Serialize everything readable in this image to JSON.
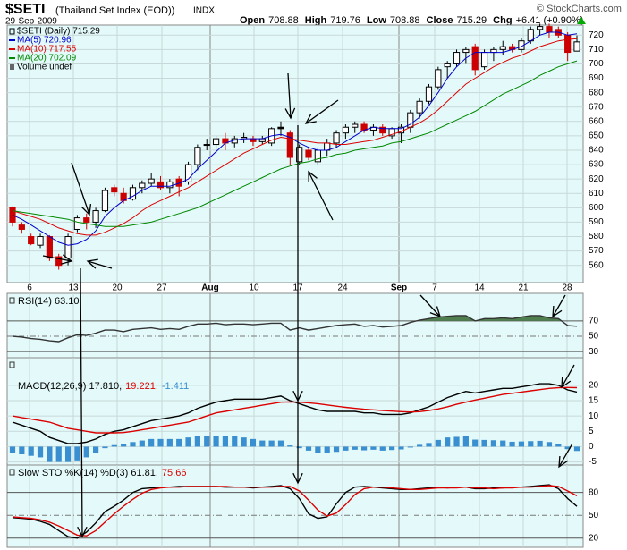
{
  "header": {
    "symbol": "$SETI",
    "name": "(Thailand Set Index (EOD))",
    "exchange": "INDX",
    "date": "29-Sep-2009",
    "credit": "© StockCharts.com",
    "quote": [
      {
        "label": "Open",
        "value": "708.88"
      },
      {
        "label": "High",
        "value": "719.76"
      },
      {
        "label": "Low",
        "value": "708.88"
      },
      {
        "label": "Close",
        "value": "715.29"
      },
      {
        "label": "Chg",
        "value": "+6.41 (+0.90%)"
      }
    ]
  },
  "chart_data": [
    {
      "type": "candlestick",
      "legend_note": "Volume undef",
      "ylim": [
        548,
        727
      ],
      "yticks": [
        560,
        570,
        580,
        590,
        600,
        610,
        620,
        630,
        640,
        650,
        660,
        670,
        680,
        690,
        700,
        710,
        720
      ],
      "grid": true,
      "x_labels": [
        "6",
        "13",
        "20",
        "27",
        "Aug",
        "10",
        "17",
        "24",
        "Sep",
        "7",
        "14",
        "21",
        "28"
      ],
      "series": [
        {
          "name": "$SETI (Daily) 715.29",
          "up_color": "#000000",
          "down_color": "#cc0000",
          "open": [
            600,
            588,
            580,
            574,
            580,
            566,
            565,
            585,
            593,
            590,
            598,
            614,
            610,
            606,
            614,
            617,
            618,
            614,
            620,
            618,
            630,
            644,
            644,
            648,
            645,
            648,
            648,
            646,
            645,
            656,
            652,
            632,
            640,
            632,
            640,
            645,
            652,
            656,
            658,
            654,
            656,
            650,
            652,
            656,
            666,
            674,
            684,
            698,
            700,
            708,
            712,
            698,
            708,
            710,
            712,
            710,
            716,
            724,
            726,
            724,
            720,
            708.88
          ],
          "high": [
            601,
            590,
            582,
            582,
            581,
            568,
            582,
            595,
            596,
            600,
            614,
            616,
            614,
            616,
            619,
            624,
            622,
            620,
            622,
            632,
            644,
            648,
            650,
            652,
            650,
            652,
            650,
            650,
            656,
            660,
            654,
            644,
            642,
            642,
            648,
            654,
            658,
            660,
            660,
            658,
            658,
            656,
            658,
            668,
            676,
            686,
            698,
            702,
            710,
            712,
            714,
            710,
            712,
            716,
            714,
            718,
            726,
            728,
            728,
            726,
            722,
            719.76
          ],
          "low": [
            587,
            582,
            574,
            572,
            563,
            557,
            560,
            583,
            585,
            586,
            597,
            608,
            603,
            605,
            610,
            615,
            612,
            610,
            608,
            616,
            626,
            640,
            638,
            640,
            642,
            645,
            643,
            644,
            643,
            650,
            630,
            630,
            633,
            630,
            636,
            642,
            648,
            652,
            652,
            650,
            650,
            648,
            645,
            652,
            662,
            672,
            682,
            690,
            698,
            700,
            692,
            696,
            702,
            706,
            708,
            708,
            714,
            720,
            718,
            718,
            702,
            708.88
          ],
          "close": [
            590,
            585,
            575,
            580,
            565,
            560,
            580,
            593,
            590,
            598,
            612,
            611,
            605,
            614,
            617,
            620,
            614,
            618,
            615,
            630,
            642,
            644,
            648,
            645,
            648,
            649,
            646,
            648,
            655,
            655,
            635,
            642,
            635,
            640,
            645,
            652,
            656,
            658,
            654,
            656,
            652,
            655,
            656,
            666,
            674,
            684,
            696,
            700,
            708,
            710,
            696,
            708,
            710,
            712,
            710,
            716,
            724,
            726,
            722,
            720,
            708,
            715.29
          ]
        },
        {
          "name": "MA(5) 720.96",
          "color": "#0000cc",
          "values": [
            595,
            592,
            588,
            584,
            580,
            576,
            574,
            575,
            578,
            584,
            594,
            600,
            605,
            608,
            612,
            615,
            615,
            615,
            617,
            620,
            627,
            633,
            639,
            645,
            647,
            648,
            648,
            648,
            650,
            651,
            649,
            645,
            642,
            640,
            640,
            642,
            646,
            650,
            654,
            656,
            655,
            655,
            655,
            658,
            663,
            671,
            680,
            690,
            698,
            704,
            708,
            708,
            708,
            708,
            710,
            712,
            716,
            720,
            722,
            722,
            720,
            720.96
          ]
        },
        {
          "name": "MA(10) 717.55",
          "color": "#dd0000",
          "values": [
            598,
            596,
            594,
            592,
            589,
            586,
            584,
            582,
            581,
            581,
            583,
            586,
            589,
            593,
            598,
            602,
            605,
            608,
            611,
            614,
            618,
            622,
            626,
            630,
            634,
            638,
            641,
            644,
            647,
            649,
            648,
            647,
            646,
            645,
            645,
            644,
            644,
            645,
            646,
            647,
            649,
            651,
            653,
            656,
            659,
            663,
            668,
            674,
            680,
            686,
            690,
            694,
            698,
            701,
            704,
            706,
            709,
            712,
            714,
            716,
            717,
            717.55
          ]
        },
        {
          "name": "MA(20) 702.09",
          "color": "#008800",
          "values": [
            598,
            597,
            596,
            595,
            594,
            593,
            592,
            590,
            589,
            588,
            587,
            587,
            587,
            588,
            589,
            590,
            592,
            594,
            596,
            598,
            600,
            603,
            606,
            609,
            612,
            615,
            618,
            621,
            624,
            627,
            629,
            631,
            632,
            634,
            635,
            637,
            638,
            640,
            641,
            642,
            643,
            645,
            646,
            648,
            650,
            652,
            655,
            658,
            661,
            664,
            667,
            671,
            675,
            679,
            682,
            685,
            688,
            692,
            695,
            698,
            700,
            702.09
          ]
        }
      ]
    },
    {
      "type": "line",
      "ylim": [
        22,
        106
      ],
      "yticks": [
        30,
        50,
        70
      ],
      "fill_above": 70,
      "fill_color": "#4f7f4f",
      "series": [
        {
          "name": "RSI(14) 63.10",
          "color": "#333333",
          "values": [
            50,
            49,
            47,
            46,
            44,
            43,
            48,
            52,
            51,
            54,
            58,
            58,
            56,
            59,
            60,
            61,
            59,
            60,
            59,
            63,
            66,
            66,
            67,
            65,
            66,
            66,
            65,
            66,
            67,
            67,
            58,
            61,
            58,
            60,
            62,
            64,
            65,
            66,
            63,
            64,
            62,
            63,
            64,
            68,
            71,
            73,
            75,
            76,
            77,
            77,
            70,
            73,
            73,
            74,
            73,
            75,
            77,
            77,
            74,
            73,
            64,
            63.1
          ]
        }
      ]
    },
    {
      "type": "line",
      "ylim": [
        -6,
        29
      ],
      "yticks": [
        20,
        15,
        10,
        5,
        0,
        -5
      ],
      "series": [
        {
          "name": "MACD(12,26,9) 17.810,",
          "color": "#000000",
          "values": [
            8,
            7,
            6,
            5,
            3,
            2,
            1,
            1,
            1.5,
            2.5,
            4,
            5,
            5.5,
            6.5,
            7.5,
            8.5,
            9,
            9.5,
            10,
            11,
            12.5,
            13.5,
            14.5,
            15,
            15.5,
            15.5,
            15.5,
            15.5,
            16,
            16.5,
            15,
            14,
            13,
            12,
            11.5,
            11.5,
            11.5,
            11.5,
            11,
            11,
            10.5,
            10.5,
            10.5,
            11,
            12,
            13,
            14.5,
            16,
            17,
            18,
            17.5,
            18,
            18.5,
            19,
            19,
            19.5,
            20,
            20.5,
            20.5,
            20,
            18.5,
            17.81
          ]
        },
        {
          "name": "19.221,",
          "color": "#dd0000",
          "values": [
            10,
            9.5,
            9,
            8.5,
            8,
            7,
            6,
            5.5,
            5,
            4.5,
            4.5,
            4.5,
            4.6,
            5,
            5.5,
            6,
            6.5,
            7,
            7.5,
            8,
            9,
            10,
            11,
            11.5,
            12,
            12.5,
            13,
            13.5,
            14,
            14.5,
            14.6,
            14.5,
            14.3,
            14,
            13.6,
            13.2,
            12.8,
            12.5,
            12.2,
            12,
            11.8,
            11.6,
            11.4,
            11.3,
            11.4,
            11.8,
            12.3,
            13,
            13.8,
            14.5,
            15.2,
            15.8,
            16.4,
            17,
            17.4,
            17.8,
            18.2,
            18.6,
            19,
            19.2,
            19.3,
            19.221
          ]
        },
        {
          "name": "-1.411",
          "color": "#3a8fd0",
          "style": "bar",
          "values": [
            -2,
            -2.5,
            -3,
            -3.5,
            -5,
            -5,
            -5,
            -4.5,
            -3.5,
            -2,
            -0.5,
            0.5,
            0.9,
            1.5,
            2,
            2.5,
            2.5,
            2.5,
            2.5,
            3,
            3.5,
            3.5,
            3.5,
            3.5,
            3.5,
            3,
            2.5,
            2,
            2,
            2,
            0.4,
            -0.5,
            -1.3,
            -2,
            -2.1,
            -1.7,
            -1.3,
            -1,
            -1.2,
            -1,
            -1.3,
            -1.1,
            -0.9,
            -0.3,
            0.6,
            1.2,
            2.2,
            3,
            3.2,
            3.5,
            2.3,
            2.2,
            2.1,
            2,
            1.6,
            1.7,
            1.8,
            1.9,
            1.5,
            0.8,
            -0.8,
            -1.411
          ]
        }
      ]
    },
    {
      "type": "line",
      "ylim": [
        8,
        116
      ],
      "yticks": [
        80,
        50,
        20
      ],
      "series": [
        {
          "name": "Slow STO %K(14) %D(3) 61.81,",
          "color": "#000000",
          "values": [
            47,
            46,
            45,
            42,
            38,
            30,
            22,
            20,
            28,
            40,
            55,
            62,
            70,
            80,
            85,
            86,
            87,
            87,
            88,
            88,
            88,
            88,
            88,
            87,
            87,
            87,
            86,
            87,
            88,
            89,
            85,
            72,
            52,
            46,
            48,
            65,
            80,
            87,
            88,
            87,
            86,
            85,
            84,
            84,
            85,
            86,
            87,
            86,
            87,
            87,
            85,
            85,
            86,
            86,
            87,
            87,
            88,
            89,
            90,
            85,
            72,
            61.81
          ]
        },
        {
          "name": "75.66",
          "color": "#dd0000",
          "values": [
            48,
            47,
            46,
            44,
            41,
            36,
            30,
            24,
            23,
            30,
            41,
            52,
            62,
            71,
            79,
            84,
            86,
            87,
            87,
            88,
            88,
            88,
            88,
            88,
            87,
            87,
            87,
            87,
            87,
            88,
            88,
            82,
            70,
            57,
            49,
            53,
            64,
            77,
            85,
            87,
            87,
            86,
            85,
            84,
            84,
            85,
            86,
            86,
            86,
            87,
            86,
            86,
            85,
            86,
            86,
            87,
            87,
            88,
            89,
            88,
            82,
            75.66
          ]
        }
      ]
    }
  ]
}
